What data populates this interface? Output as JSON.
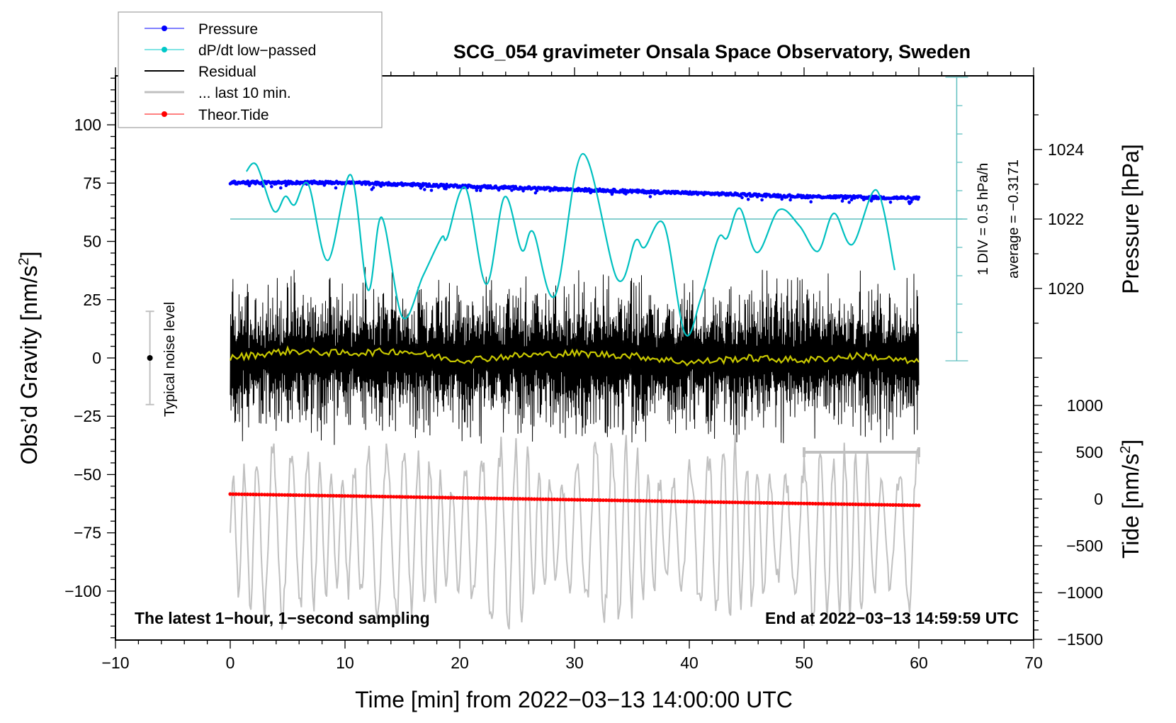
{
  "chart_data": {
    "type": "line",
    "title": "SCG_054 gravimeter Onsala Space Observatory, Sweden",
    "xlabel": "Time [min] from 2022−03−13 14:00:00 UTC",
    "ylabel_left": "Obs’d Gravity [nm/s",
    "ylabel_left_sup": "2",
    "ylabel_left_close": "]",
    "ylabel_right_top": "Pressure [hPa]",
    "ylabel_right_bottom": "Tide [nm/s",
    "ylabel_right_bottom_sup": "2",
    "ylabel_right_bottom_close": "]",
    "xlim": [
      -10,
      70
    ],
    "ylim_left": [
      -121,
      121
    ],
    "x_ticks": [
      -10,
      0,
      10,
      20,
      30,
      40,
      50,
      60,
      70
    ],
    "x_tick_labels": [
      "−10",
      "0",
      "10",
      "20",
      "30",
      "40",
      "50",
      "60",
      "70"
    ],
    "y_ticks_left": [
      100,
      75,
      50,
      25,
      0,
      -25,
      -50,
      -75,
      -100
    ],
    "y_tick_labels_left": [
      "100",
      "75",
      "50",
      "25",
      "0",
      "−25",
      "−50",
      "−75",
      "−100"
    ],
    "pressure_axis": {
      "ticks": [
        1024,
        1022,
        1020
      ],
      "tick_labels": [
        "1024",
        "1022",
        "1020"
      ],
      "reference_hpa": 1022
    },
    "tide_axis": {
      "ticks": [
        1000,
        500,
        0,
        -500,
        -1000,
        -1500
      ],
      "tick_labels": [
        "1000",
        "500",
        "0",
        "−500",
        "−1000",
        "−1500"
      ]
    },
    "legend": {
      "placement": "top-left",
      "entries": [
        {
          "label": "Pressure",
          "color": "#0000ff",
          "marker": "dot"
        },
        {
          "label": "dP/dt low−passed",
          "color": "#00c8c8",
          "marker": "dot"
        },
        {
          "label": "Residual",
          "color": "#000000",
          "marker": "line"
        },
        {
          "label": "... last 10 min.",
          "color": "#c0c0c0",
          "marker": "line"
        },
        {
          "label": "Theor.Tide",
          "color": "#ff0000",
          "marker": "dot"
        }
      ]
    },
    "colors": {
      "pressure": "#0000ff",
      "dpdt": "#00c0c0",
      "dpdt_scale": "#5fbfbf",
      "residual": "#000000",
      "residual_smooth": "#c8c800",
      "last10": "#c0c0c0",
      "tide": "#ff0000",
      "noise_bar": "#c0c0c0"
    },
    "series": [
      {
        "name": "Pressure",
        "unit": "hPa",
        "x": [
          0,
          10,
          20,
          30,
          40,
          50,
          60
        ],
        "values": [
          1023.05,
          1023.05,
          1022.95,
          1022.85,
          1022.75,
          1022.65,
          1022.6
        ]
      },
      {
        "name": "dP/dt low-passed",
        "unit": "hPa/h",
        "x": [
          1.4,
          2.3,
          3.8,
          4.8,
          5.6,
          6.8,
          8.5,
          10.5,
          12.0,
          13.2,
          15.0,
          16.8,
          18.4,
          18.9,
          20.5,
          22.3,
          23.9,
          25.4,
          26.4,
          28.3,
          30.7,
          33.7,
          35.3,
          36.1,
          37.8,
          39.6,
          41.0,
          42.5,
          43.3,
          44.4,
          45.9,
          47.8,
          49.6,
          51.2,
          52.6,
          54.2,
          56.3,
          57.9
        ],
        "values": [
          0.84,
          0.95,
          0.14,
          0.4,
          0.25,
          0.61,
          -0.73,
          0.78,
          -1.25,
          0.03,
          -1.73,
          -1.0,
          -0.33,
          -0.33,
          0.55,
          -1.15,
          0.39,
          -0.55,
          -0.23,
          -1.35,
          1.15,
          -1.05,
          -0.38,
          -0.5,
          -0.1,
          -2.01,
          -1.4,
          -0.35,
          -0.33,
          0.19,
          -0.59,
          0.16,
          -0.12,
          -0.57,
          0.1,
          -0.45,
          0.51,
          -0.9
        ]
      },
      {
        "name": "Residual",
        "unit": "nm/s2",
        "x_range": [
          0,
          60
        ],
        "envelope": [
          -40,
          40
        ],
        "smoothed_x": [
          0,
          5,
          10,
          15,
          20,
          25,
          30,
          35,
          40,
          45,
          50,
          55,
          60
        ],
        "smoothed_values": [
          0,
          3,
          2,
          3,
          -1,
          1,
          2,
          1,
          -2,
          0,
          -1,
          1,
          -2
        ]
      },
      {
        "name": "... last 10 min.",
        "unit": "nm/s2",
        "source_window_min": [
          50,
          60
        ],
        "center": -75,
        "amplitude": 45
      },
      {
        "name": "Theor.Tide",
        "unit": "nm/s2",
        "x": [
          0,
          60
        ],
        "values": [
          53,
          -68
        ]
      }
    ],
    "dpdt_scale_bar": {
      "division_label": "1 DIV = 0.5 hPa/h",
      "average_label": "average = −0.3171",
      "hpa_per_hour_per_div": 0.5,
      "divisions": 10,
      "average": -0.3171,
      "x_min": 63.3
    },
    "last10_bracket": {
      "x_start": 50,
      "x_end": 60,
      "tide_level": 500
    },
    "noise_level": {
      "label": "Typical noise level",
      "x": -7,
      "center": 0,
      "half_range": 20
    },
    "annotations": {
      "bottom_left": "The latest 1−hour, 1−second sampling",
      "bottom_right": "End at 2022−03−13 14:59:59 UTC"
    },
    "grid": false
  }
}
